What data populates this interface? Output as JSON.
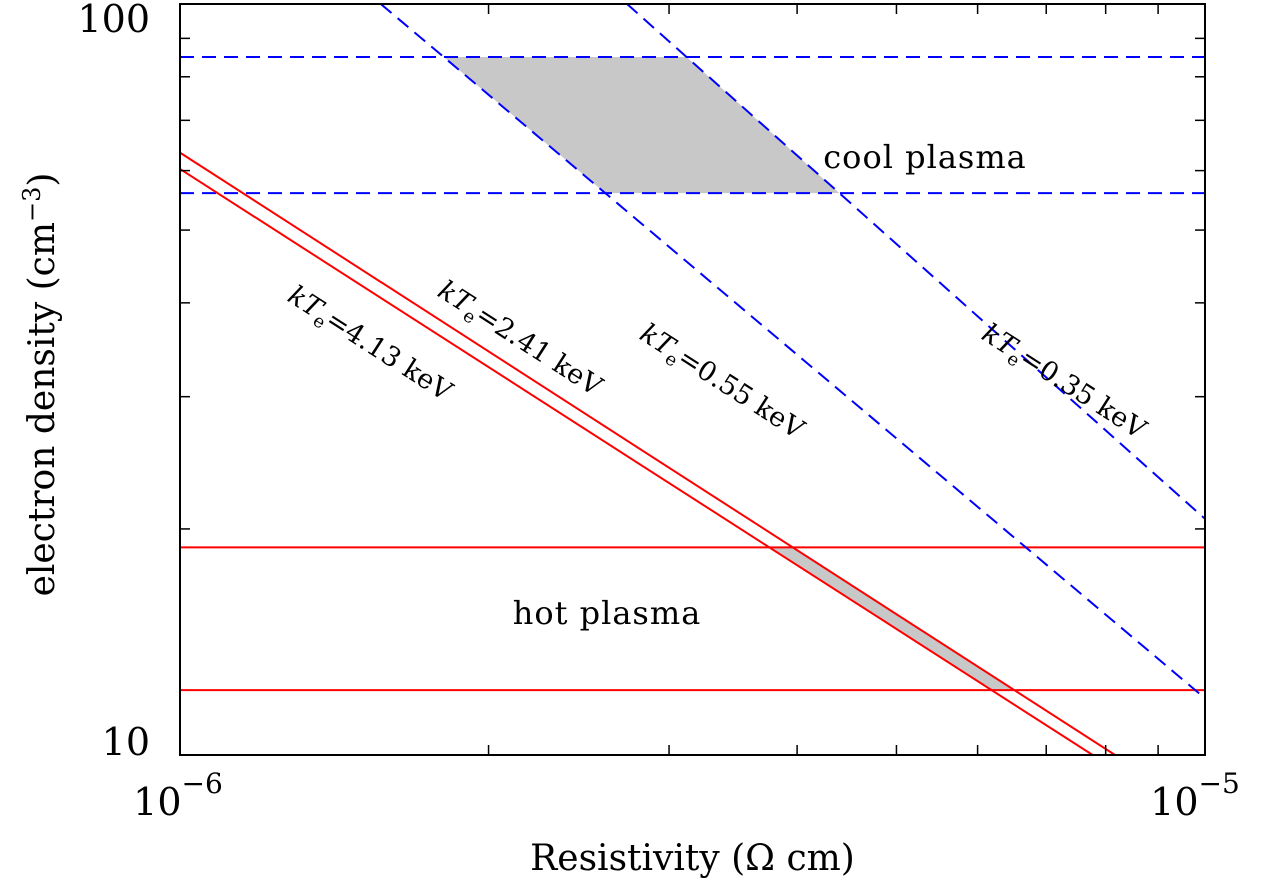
{
  "chart_data": {
    "type": "line",
    "xlabel": "Resistivity (Ω cm)",
    "ylabel_main": "electron density (cm",
    "ylabel_exp": "−3",
    "ylabel_close": ")",
    "xscale": "log",
    "yscale": "log",
    "xlim": [
      1e-06,
      1e-05
    ],
    "ylim": [
      10,
      100
    ],
    "x_tick_labels": [
      {
        "value": 1e-06,
        "base": "10",
        "exp": "−6"
      },
      {
        "value": 1e-05,
        "base": "10",
        "exp": "−5"
      }
    ],
    "y_tick_labels": [
      {
        "value": 100,
        "text": "100"
      },
      {
        "value": 10,
        "text": "10"
      }
    ],
    "regions": {
      "cool": {
        "label": "cool plasma",
        "n_min": 56,
        "n_max": 85,
        "color": "#c8c8c8"
      },
      "hot": {
        "label": "hot plasma",
        "n_min": 12.2,
        "n_max": 18.9,
        "color": "#c8c8c8"
      }
    },
    "series": [
      {
        "label_main": "kT",
        "label_sub": "e",
        "label_rest": "=4.13 keV",
        "group": "hot",
        "color": "#ff0000",
        "dash": "solid",
        "points": [
          [
            1e-06,
            60.3
          ],
          [
            7.77e-06,
            10
          ]
        ]
      },
      {
        "label_main": "kT",
        "label_sub": "e",
        "label_rest": "=2.41 keV",
        "group": "hot",
        "color": "#ff0000",
        "dash": "solid",
        "points": [
          [
            1e-06,
            63.4
          ],
          [
            8.17e-06,
            10
          ]
        ]
      },
      {
        "label_main": "kT",
        "label_sub": "e",
        "label_rest": "=0.55 keV",
        "group": "cool",
        "color": "#0000ff",
        "dash": "dashed",
        "points": [
          [
            1.57e-06,
            100
          ],
          [
            1.03e-05,
            11.5
          ]
        ]
      },
      {
        "label_main": "kT",
        "label_sub": "e",
        "label_rest": "=0.35 keV",
        "group": "cool",
        "color": "#0000ff",
        "dash": "dashed",
        "points": [
          [
            2.73e-06,
            100
          ],
          [
            1.03e-05,
            19.9
          ]
        ]
      }
    ]
  }
}
